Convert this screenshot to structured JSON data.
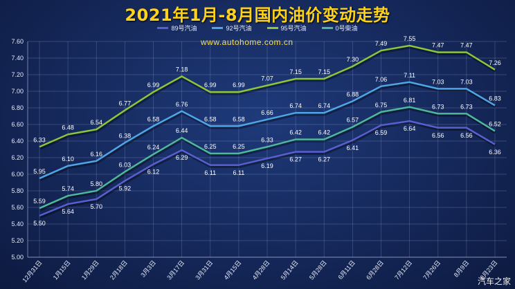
{
  "title": "2021年1月-8月国内油价变动走势",
  "url": "www.autohome.com.cn",
  "brand": "汽车之家",
  "chart_data": {
    "type": "line",
    "x": [
      "12月31日",
      "1月15日",
      "1月29日",
      "2月18日",
      "3月3日",
      "3月17日",
      "3月31日",
      "4月15日",
      "4月28日",
      "5月14日",
      "5月28日",
      "6月11日",
      "6月28日",
      "7月12日",
      "7月26日",
      "8月9日",
      "8月23日"
    ],
    "ylim": [
      5.0,
      7.6
    ],
    "yticks": [
      "5.00",
      "5.20",
      "5.40",
      "5.60",
      "5.80",
      "6.00",
      "6.20",
      "6.40",
      "6.60",
      "6.80",
      "7.00",
      "7.20",
      "7.40",
      "7.60"
    ],
    "grid": true,
    "legend_position": "top",
    "series": [
      {
        "name": "89号汽油",
        "color": "#5a5fd0",
        "values": [
          5.5,
          5.64,
          5.7,
          5.92,
          6.12,
          6.29,
          6.11,
          6.11,
          6.19,
          6.27,
          6.27,
          6.41,
          6.59,
          6.64,
          6.56,
          6.56,
          6.36
        ],
        "labels": [
          "5.50",
          "5.64",
          "5.70",
          "5.92",
          "6.12",
          "6.29",
          "6.11",
          "6.11",
          "6.19",
          "6.27",
          "6.27",
          "6.41",
          "6.59",
          "6.64",
          "6.56",
          "6.56",
          "6.36"
        ]
      },
      {
        "name": "92号汽油",
        "color": "#4fa6e6",
        "values": [
          5.95,
          6.1,
          6.16,
          6.38,
          6.58,
          6.76,
          6.58,
          6.58,
          6.66,
          6.74,
          6.74,
          6.88,
          7.06,
          7.11,
          7.03,
          7.03,
          6.83
        ],
        "labels": [
          "5.95",
          "6.10",
          "6.16",
          "6.38",
          "6.58",
          "6.76",
          "6.58",
          "6.58",
          "6.66",
          "6.74",
          "6.74",
          "6.88",
          "7.06",
          "7.11",
          "7.03",
          "7.03",
          "6.83"
        ]
      },
      {
        "name": "95号汽油",
        "color": "#8cc63e",
        "values": [
          6.33,
          6.48,
          6.54,
          6.77,
          6.99,
          7.18,
          6.99,
          6.99,
          7.07,
          7.15,
          7.15,
          7.3,
          7.49,
          7.55,
          7.47,
          7.47,
          7.26
        ],
        "labels": [
          "6.33",
          "6.48",
          "6.54",
          "6.77",
          "6.99",
          "7.18",
          "6.99",
          "6.99",
          "7.07",
          "7.15",
          "7.15",
          "7.30",
          "7.49",
          "7.55",
          "7.47",
          "7.47",
          "7.26"
        ]
      },
      {
        "name": "0号柴油",
        "color": "#4fb89a",
        "values": [
          5.59,
          5.74,
          5.8,
          6.03,
          6.24,
          6.44,
          6.25,
          6.25,
          6.33,
          6.42,
          6.42,
          6.57,
          6.75,
          6.81,
          6.73,
          6.73,
          6.52
        ],
        "labels": [
          "5.59",
          "5.74",
          "5.80",
          "6.03",
          "6.24",
          "6.44",
          "6.25",
          "6.25",
          "6.33",
          "6.42",
          "6.42",
          "6.57",
          "6.75",
          "6.81",
          "6.73",
          "6.73",
          "6.52"
        ]
      }
    ]
  }
}
